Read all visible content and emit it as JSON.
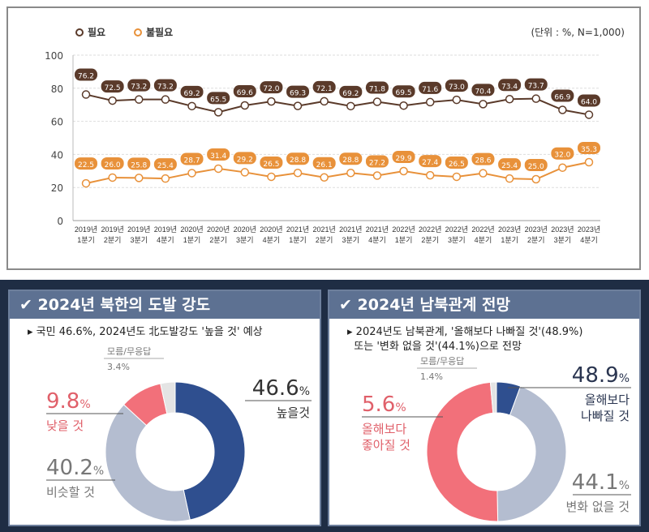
{
  "chart_data": [
    {
      "type": "line",
      "unit_note": "(단위 : %, N=1,000)",
      "ylim": [
        0,
        100
      ],
      "yticks": [
        0,
        20,
        40,
        60,
        80,
        100
      ],
      "grid": true,
      "legend_placement": "top-left",
      "categories": [
        [
          "2019년",
          "1분기"
        ],
        [
          "2019년",
          "2분기"
        ],
        [
          "2019년",
          "3분기"
        ],
        [
          "2019년",
          "4분기"
        ],
        [
          "2020년",
          "1분기"
        ],
        [
          "2020년",
          "2분기"
        ],
        [
          "2020년",
          "3분기"
        ],
        [
          "2020년",
          "4분기"
        ],
        [
          "2021년",
          "1분기"
        ],
        [
          "2021년",
          "2분기"
        ],
        [
          "2021년",
          "3분기"
        ],
        [
          "2021년",
          "4분기"
        ],
        [
          "2022년",
          "1분기"
        ],
        [
          "2022년",
          "2분기"
        ],
        [
          "2022년",
          "3분기"
        ],
        [
          "2022년",
          "4분기"
        ],
        [
          "2023년",
          "1분기"
        ],
        [
          "2023년",
          "2분기"
        ],
        [
          "2023년",
          "3분기"
        ],
        [
          "2023년",
          "4분기"
        ]
      ],
      "series": [
        {
          "name": "필요",
          "color": "#5a3a2a",
          "values": [
            76.2,
            72.5,
            73.2,
            73.2,
            69.2,
            65.5,
            69.6,
            72.0,
            69.3,
            72.1,
            69.2,
            71.8,
            69.5,
            71.6,
            73.0,
            70.4,
            73.4,
            73.7,
            66.9,
            64.0
          ]
        },
        {
          "name": "불필요",
          "color": "#e8913a",
          "values": [
            22.5,
            26.0,
            25.8,
            25.4,
            28.7,
            31.4,
            29.2,
            26.5,
            28.8,
            26.1,
            28.8,
            27.2,
            29.9,
            27.4,
            26.5,
            28.6,
            25.4,
            25.0,
            32.0,
            35.3
          ]
        }
      ]
    },
    {
      "type": "pie",
      "title": "2024년 북한의 도발 강도",
      "subtitle": "국민 46.6%, 2024년도 北도발강도 '높을 것' 예상",
      "slices": [
        {
          "label": "높을것",
          "value": 46.6,
          "display": "46.6",
          "color": "#2f4f8f",
          "text_color": "#333333"
        },
        {
          "label": "비슷할 것",
          "value": 40.2,
          "display": "40.2",
          "color": "#b4bdd0",
          "text_color": "#777777"
        },
        {
          "label": "낮을 것",
          "value": 9.8,
          "display": "9.8",
          "color": "#f2707a",
          "text_color": "#e0606a"
        },
        {
          "label": "모름/무응답",
          "value": 3.4,
          "display": "3.4%",
          "color": "#e4e4e4",
          "text_color": "#777777"
        }
      ]
    },
    {
      "type": "pie",
      "title": "2024년 남북관계 전망",
      "subtitle": [
        "2024년도 남북관계, '올해보다 나빠질 것'(48.9%)",
        "또는 '변화 없을 것'(44.1%)으로 전망"
      ],
      "slices": [
        {
          "label": "올해보다 좋아질 것",
          "value": 5.6,
          "display": "5.6",
          "color": "#2f4f8f",
          "text_color": "#e0606a"
        },
        {
          "label": "변화 없을 것",
          "value": 44.1,
          "display": "44.1",
          "color": "#b4bdd0",
          "text_color": "#777777"
        },
        {
          "label": "올해보다 나빠질 것",
          "value": 48.9,
          "display": "48.9",
          "color": "#f2707a",
          "text_color": "#2a3550"
        },
        {
          "label": "모름/무응답",
          "value": 1.4,
          "display": "1.4%",
          "color": "#e4e4e4",
          "text_color": "#777777"
        }
      ]
    }
  ],
  "percent_sign": "%"
}
